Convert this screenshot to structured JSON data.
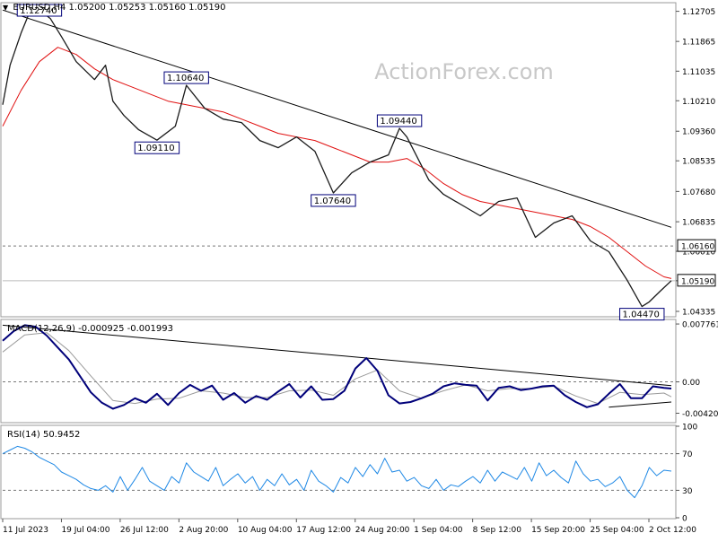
{
  "header": {
    "symbol": "EURUSD,H4",
    "ohlc": "1.05200 1.05253 1.05160 1.05190",
    "menu_icon": "triangle-down-icon"
  },
  "watermark": "ActionForex.com",
  "colors": {
    "price": "#1a1a1a",
    "ma": "#e01010",
    "macd_main": "#00007a",
    "macd_signal": "#9a9a9a",
    "rsi": "#1e88e5",
    "trendline": "#000000",
    "grid_dash": "#777777",
    "panel_border": "#9a9a9a",
    "label_border": "#00007a",
    "label_bg": "#ffffff"
  },
  "x_axis": {
    "labels": [
      "11 Jul 2023",
      "19 Jul 04:00",
      "26 Jul 12:00",
      "2 Aug 20:00",
      "10 Aug 04:00",
      "17 Aug 12:00",
      "24 Aug 20:00",
      "1 Sep 04:00",
      "8 Sep 12:00",
      "15 Sep 20:00",
      "25 Sep 04:00",
      "2 Oct 12:00"
    ]
  },
  "chart_data": [
    {
      "type": "line",
      "panel": "price",
      "symbol": "EURUSD",
      "timeframe": "H4",
      "y_ticks": [
        "1.12705",
        "1.11865",
        "1.11035",
        "1.10210",
        "1.09360",
        "1.08535",
        "1.07680",
        "1.06835",
        "1.06010",
        "1.05190",
        "1.04335"
      ],
      "ylim": [
        1.0421,
        1.1292
      ],
      "x_range": [
        0,
        364
      ],
      "price_line": {
        "name": "Price",
        "x": [
          0,
          4,
          10,
          14,
          20,
          26,
          32,
          40,
          50,
          56,
          60,
          66,
          74,
          84,
          94,
          100,
          110,
          120,
          130,
          140,
          150,
          160,
          170,
          180,
          190,
          200,
          210,
          216,
          220,
          224,
          232,
          240,
          250,
          260,
          270,
          280,
          290,
          300,
          310,
          320,
          330,
          340,
          348,
          352,
          358,
          364
        ],
        "y": [
          1.101,
          1.112,
          1.121,
          1.126,
          1.1274,
          1.125,
          1.12,
          1.113,
          1.108,
          1.112,
          1.102,
          1.098,
          1.094,
          1.0911,
          1.095,
          1.1064,
          1.1,
          1.097,
          1.096,
          1.091,
          1.089,
          1.092,
          1.088,
          1.0764,
          1.082,
          1.085,
          1.087,
          1.0944,
          1.092,
          1.088,
          1.08,
          1.076,
          1.073,
          1.07,
          1.074,
          1.075,
          1.064,
          1.068,
          1.07,
          1.063,
          1.06,
          1.052,
          1.0447,
          1.046,
          1.049,
          1.0519
        ]
      },
      "ma_line": {
        "name": "Moving Average",
        "x": [
          0,
          10,
          20,
          30,
          40,
          50,
          60,
          70,
          80,
          90,
          100,
          110,
          120,
          130,
          140,
          150,
          160,
          170,
          180,
          190,
          200,
          210,
          220,
          230,
          240,
          250,
          260,
          270,
          280,
          290,
          300,
          310,
          320,
          330,
          340,
          350,
          360,
          364
        ],
        "y": [
          1.095,
          1.105,
          1.113,
          1.117,
          1.115,
          1.111,
          1.108,
          1.106,
          1.104,
          1.102,
          1.101,
          1.1,
          1.099,
          1.097,
          1.095,
          1.093,
          1.092,
          1.091,
          1.089,
          1.087,
          1.085,
          1.085,
          1.086,
          1.083,
          1.079,
          1.076,
          1.074,
          1.073,
          1.072,
          1.071,
          1.07,
          1.069,
          1.067,
          1.064,
          1.06,
          1.056,
          1.053,
          1.0525
        ]
      },
      "trendline": {
        "x": [
          0,
          364
        ],
        "y": [
          1.1274,
          1.0668
        ]
      },
      "horizontal_levels": [
        {
          "value": 1.0616,
          "label": "1.06160",
          "style": "dashed"
        }
      ],
      "current_price": {
        "value": 1.0519,
        "label": "1.05190"
      },
      "annotations": [
        {
          "text": "1.12740",
          "x": 20,
          "y": 1.1274
        },
        {
          "text": "1.10640",
          "x": 100,
          "y": 1.1064
        },
        {
          "text": "1.09110",
          "x": 84,
          "y": 1.0911
        },
        {
          "text": "1.09440",
          "x": 216,
          "y": 1.0944
        },
        {
          "text": "1.07640",
          "x": 180,
          "y": 1.0764
        },
        {
          "text": "1.04470",
          "x": 348,
          "y": 1.0447
        }
      ]
    },
    {
      "type": "line",
      "panel": "macd",
      "title": "MACD(12,26,9) -0.000925 -0.001993",
      "y_ticks": [
        "0.007761",
        "0.00",
        "-0.004205"
      ],
      "ylim": [
        -0.00535,
        0.00825
      ],
      "x_range": [
        0,
        364
      ],
      "series": [
        {
          "name": "MACD",
          "x": [
            0,
            6,
            12,
            18,
            24,
            30,
            36,
            42,
            48,
            54,
            60,
            66,
            72,
            78,
            84,
            90,
            96,
            102,
            108,
            114,
            120,
            126,
            132,
            138,
            144,
            150,
            156,
            162,
            168,
            174,
            180,
            186,
            192,
            198,
            204,
            210,
            216,
            222,
            228,
            234,
            240,
            246,
            252,
            258,
            264,
            270,
            276,
            282,
            288,
            294,
            300,
            306,
            312,
            318,
            324,
            330,
            336,
            342,
            348,
            354,
            360,
            364
          ],
          "y": [
            0.0055,
            0.0068,
            0.0076,
            0.0074,
            0.0062,
            0.0046,
            0.003,
            0.0008,
            -0.0014,
            -0.0028,
            -0.0036,
            -0.0031,
            -0.0022,
            -0.0028,
            -0.0016,
            -0.0031,
            -0.0015,
            -0.0004,
            -0.0012,
            -0.0005,
            -0.0024,
            -0.0015,
            -0.0028,
            -0.0019,
            -0.0024,
            -0.0013,
            -0.0003,
            -0.0021,
            -0.0006,
            -0.0024,
            -0.0023,
            -0.0012,
            0.0018,
            0.0032,
            0.0015,
            -0.0018,
            -0.0029,
            -0.0027,
            -0.0022,
            -0.0016,
            -0.0006,
            -0.0002,
            -0.0004,
            -0.0005,
            -0.0025,
            -0.0008,
            -0.0006,
            -0.0011,
            -0.0009,
            -0.0006,
            -0.0005,
            -0.0018,
            -0.0027,
            -0.0034,
            -0.003,
            -0.0016,
            -0.0003,
            -0.0022,
            -0.0022,
            -0.0006,
            -0.0008,
            -0.0009
          ]
        },
        {
          "name": "Signal",
          "x": [
            0,
            12,
            24,
            36,
            48,
            60,
            72,
            84,
            96,
            108,
            120,
            132,
            144,
            156,
            168,
            180,
            192,
            204,
            216,
            228,
            240,
            252,
            264,
            276,
            288,
            300,
            312,
            324,
            336,
            348,
            360,
            364
          ],
          "y": [
            0.004,
            0.0063,
            0.0066,
            0.0042,
            0.0008,
            -0.0025,
            -0.0029,
            -0.0023,
            -0.0022,
            -0.0012,
            -0.0015,
            -0.0021,
            -0.0021,
            -0.0012,
            -0.0011,
            -0.0018,
            0.0004,
            0.0016,
            -0.0012,
            -0.0022,
            -0.0012,
            -0.0004,
            -0.0012,
            -0.0009,
            -0.0009,
            -0.0006,
            -0.0019,
            -0.0029,
            -0.0014,
            -0.0017,
            -0.0015,
            -0.002
          ]
        }
      ],
      "trendlines": [
        {
          "x": [
            0,
            364
          ],
          "y": [
            0.0076,
            -0.0005
          ]
        },
        {
          "x": [
            330,
            364
          ],
          "y": [
            -0.0034,
            -0.0027
          ]
        }
      ]
    },
    {
      "type": "line",
      "panel": "rsi",
      "title": "RSI(14) 50.9452",
      "y_ticks": [
        "100",
        "70",
        "30",
        "0"
      ],
      "ylim": [
        0,
        100
      ],
      "levels": [
        70,
        30
      ],
      "x_range": [
        0,
        364
      ],
      "series": [
        {
          "name": "RSI",
          "x": [
            0,
            4,
            8,
            12,
            16,
            20,
            24,
            28,
            32,
            36,
            40,
            44,
            48,
            52,
            56,
            60,
            64,
            68,
            72,
            76,
            80,
            84,
            88,
            92,
            96,
            100,
            104,
            108,
            112,
            116,
            120,
            124,
            128,
            132,
            136,
            140,
            144,
            148,
            152,
            156,
            160,
            164,
            168,
            172,
            176,
            180,
            184,
            188,
            192,
            196,
            200,
            204,
            208,
            212,
            216,
            220,
            224,
            228,
            232,
            236,
            240,
            244,
            248,
            252,
            256,
            260,
            264,
            268,
            272,
            276,
            280,
            284,
            288,
            292,
            296,
            300,
            304,
            308,
            312,
            316,
            320,
            324,
            328,
            332,
            336,
            340,
            344,
            348,
            352,
            356,
            360,
            364
          ],
          "y": [
            70,
            74,
            78,
            76,
            72,
            66,
            62,
            58,
            50,
            46,
            42,
            36,
            32,
            30,
            35,
            28,
            45,
            30,
            42,
            55,
            40,
            35,
            30,
            45,
            38,
            60,
            50,
            45,
            40,
            55,
            35,
            42,
            48,
            38,
            45,
            30,
            42,
            35,
            48,
            36,
            42,
            30,
            52,
            40,
            35,
            28,
            44,
            38,
            55,
            45,
            58,
            48,
            65,
            50,
            52,
            40,
            44,
            35,
            32,
            42,
            30,
            36,
            34,
            40,
            45,
            38,
            52,
            40,
            50,
            46,
            42,
            55,
            40,
            60,
            46,
            52,
            44,
            38,
            62,
            48,
            40,
            42,
            34,
            38,
            45,
            30,
            22,
            35,
            55,
            46,
            52,
            51
          ]
        }
      ]
    }
  ]
}
